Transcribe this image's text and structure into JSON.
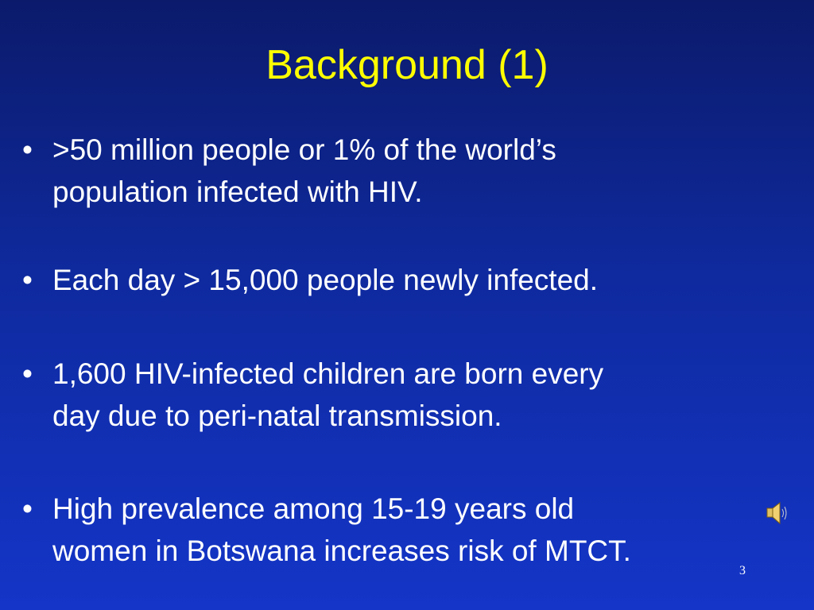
{
  "slide": {
    "title": "Background (1)",
    "bullets": [
      {
        "lines": [
          ">50 million people or 1% of the world’s",
          "population infected with HIV."
        ]
      },
      {
        "lines": [
          "Each day > 15,000 people newly infected."
        ]
      },
      {
        "lines": [
          "1,600 HIV-infected children are born every",
          "day due to peri-natal transmission."
        ]
      },
      {
        "lines": [
          "High prevalence among 15-19 years old",
          "women in Botswana increases risk of MTCT."
        ]
      }
    ],
    "page_number": "3"
  }
}
